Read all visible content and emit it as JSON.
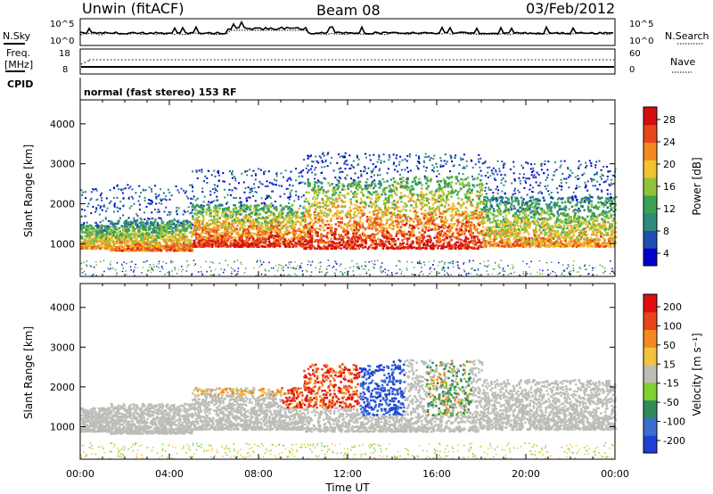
{
  "header": {
    "radar": "Unwin (fitACF)",
    "beam": "Beam 08",
    "date": "03/Feb/2012"
  },
  "noise_panel": {
    "left_label": "N.Sky",
    "left_ticks": [
      "10^5",
      "10^0"
    ],
    "right_label": "N.Search",
    "right_ticks": [
      "10^5",
      "10^0"
    ]
  },
  "freq_panel": {
    "left_label_1": "Freq.",
    "left_label_2": "[MHz]",
    "left_ticks": [
      "18",
      "8"
    ],
    "right_label": "Nave",
    "right_ticks": [
      "60",
      "0"
    ]
  },
  "cpid": {
    "label": "CPID",
    "text": "normal (fast stereo) 153 RF"
  },
  "chart_data": [
    {
      "type": "heatmap",
      "title": "Power",
      "ylabel": "Slant Range [km]",
      "ylim": [
        180,
        4600
      ],
      "yticks": [
        "1000",
        "2000",
        "3000",
        "4000"
      ],
      "colorbar_label": "Power [dB]",
      "colorbar_ticks": [
        "28",
        "24",
        "20",
        "16",
        "12",
        "8",
        "4"
      ],
      "colorbar_range": [
        0,
        32
      ],
      "colors": [
        "#0000cc",
        "#1f4fb0",
        "#2f8b7a",
        "#3aa353",
        "#8fc43a",
        "#f2c230",
        "#f28a1f",
        "#e8461a",
        "#d10f0f"
      ],
      "bands": [
        {
          "t": [
            0,
            1.3
          ],
          "r": [
            900,
            1500
          ],
          "level": "mid"
        },
        {
          "t": [
            1.3,
            5
          ],
          "r": [
            850,
            1600
          ],
          "level": "mid"
        },
        {
          "t": [
            5,
            10
          ],
          "r": [
            950,
            2000
          ],
          "level": "high"
        },
        {
          "t": [
            10,
            14
          ],
          "r": [
            900,
            2600
          ],
          "level": "high"
        },
        {
          "t": [
            14,
            18
          ],
          "r": [
            900,
            2700
          ],
          "level": "high"
        },
        {
          "t": [
            18,
            24
          ],
          "r": [
            950,
            2200
          ],
          "level": "mid"
        }
      ]
    },
    {
      "type": "heatmap",
      "title": "Velocity",
      "xlabel": "Time UT",
      "xlim": [
        0,
        24
      ],
      "xticks": [
        "00:00",
        "04:00",
        "08:00",
        "12:00",
        "16:00",
        "20:00",
        "00:00"
      ],
      "ylabel": "Slant Range [km]",
      "ylim": [
        180,
        4600
      ],
      "yticks": [
        "1000",
        "2000",
        "3000",
        "4000"
      ],
      "colorbar_label": "Velocity [m s⁻¹]",
      "colorbar_ticks": [
        "200",
        "100",
        "50",
        "15",
        "-15",
        "-50",
        "-100",
        "-200"
      ],
      "colorbar_range": [
        -250,
        250
      ],
      "colors": [
        "#1f3fd6",
        "#3a6fd0",
        "#2f8b5a",
        "#7fd030",
        "#bdbdb8",
        "#f2c23a",
        "#f28a1f",
        "#e8461a",
        "#e01010"
      ],
      "ground_scatter_color": "#bdbdb8"
    }
  ]
}
